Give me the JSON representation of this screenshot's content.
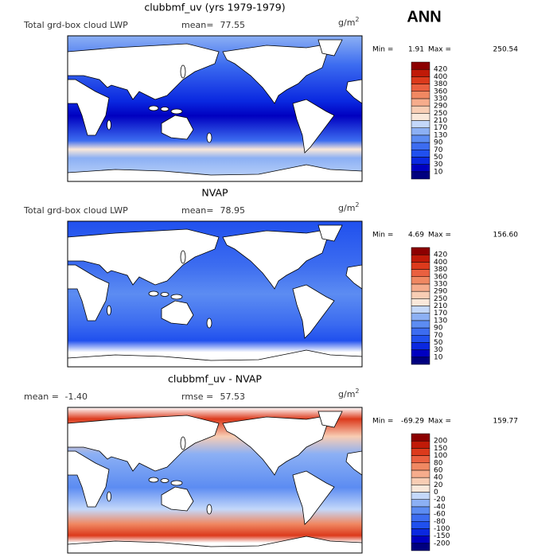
{
  "header": {
    "title": "ANN"
  },
  "panels": [
    {
      "title": "clubbmf_uv (yrs 1979-1979)",
      "description": "Total grd-box cloud LWP",
      "stats": [
        {
          "label": "mean=",
          "value": "77.55"
        }
      ],
      "units": "g/m",
      "units_power": "2",
      "min_label": "Min =",
      "min": "1.91",
      "max_label": "Max =",
      "max": "250.54",
      "colorbar": {
        "labels": [
          "10",
          "30",
          "50",
          "70",
          "90",
          "130",
          "170",
          "210",
          "250",
          "290",
          "330",
          "360",
          "380",
          "400",
          "420"
        ],
        "colors": [
          "#00007f",
          "#0000c0",
          "#0a28e0",
          "#2050ee",
          "#3c6cf0",
          "#5c8cf2",
          "#8cb0f4",
          "#c4d8fa",
          "#fae8da",
          "#f8cdb4",
          "#f6ac8c",
          "#f08862",
          "#ea6040",
          "#dc3a1c",
          "#c01a08",
          "#8c0000"
        ]
      }
    },
    {
      "title": "NVAP",
      "description": "Total grd-box cloud LWP",
      "stats": [
        {
          "label": "mean=",
          "value": "78.95"
        }
      ],
      "units": "g/m",
      "units_power": "2",
      "min_label": "Min =",
      "min": "4.69",
      "max_label": "Max =",
      "max": "156.60",
      "colorbar": {
        "labels": [
          "10",
          "30",
          "50",
          "70",
          "90",
          "130",
          "170",
          "210",
          "250",
          "290",
          "330",
          "360",
          "380",
          "400",
          "420"
        ],
        "colors": [
          "#00007f",
          "#0000c0",
          "#0a28e0",
          "#2050ee",
          "#3c6cf0",
          "#5c8cf2",
          "#8cb0f4",
          "#c4d8fa",
          "#fae8da",
          "#f8cdb4",
          "#f6ac8c",
          "#f08862",
          "#ea6040",
          "#dc3a1c",
          "#c01a08",
          "#8c0000"
        ]
      }
    },
    {
      "title": "clubbmf_uv - NVAP",
      "stats": [
        {
          "label": "mean =",
          "value": "-1.40"
        },
        {
          "label": "rmse =",
          "value": "57.53"
        }
      ],
      "units": "g/m",
      "units_power": "2",
      "min_label": "Min =",
      "min": "-69.29",
      "max_label": "Max =",
      "max": "159.77",
      "colorbar": {
        "labels": [
          "-200",
          "-150",
          "-100",
          "-80",
          "-60",
          "-40",
          "-20",
          "0",
          "20",
          "40",
          "60",
          "80",
          "100",
          "150",
          "200"
        ],
        "colors": [
          "#00007f",
          "#0000c0",
          "#0a28e0",
          "#2050ee",
          "#3c6cf0",
          "#5c8cf2",
          "#8cb0f4",
          "#c4d8fa",
          "#fae8da",
          "#f8cdb4",
          "#f6ac8c",
          "#f08862",
          "#ea6040",
          "#dc3a1c",
          "#c01a08",
          "#8c0000"
        ]
      }
    }
  ]
}
